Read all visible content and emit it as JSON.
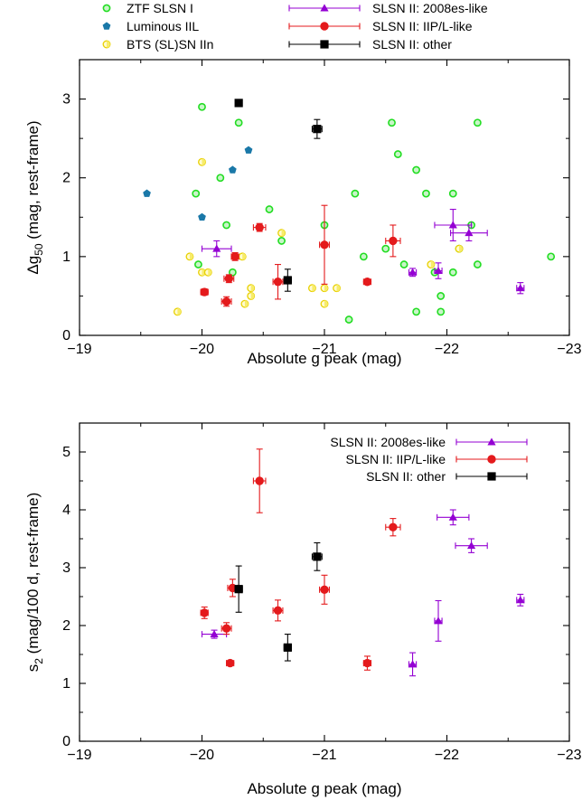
{
  "chart_data": [
    {
      "type": "scatter",
      "title": "",
      "xlabel": "Absolute g peak (mag)",
      "ylabel_parts": [
        "Δg",
        "50",
        " (mag, rest-frame)"
      ],
      "xlim": [
        -19,
        -23
      ],
      "ylim": [
        0,
        3.5
      ],
      "x_ticks": [
        -19,
        -20,
        -21,
        -22,
        -23
      ],
      "x_tick_labels": [
        "−19",
        "−20",
        "−21",
        "−22",
        "−23"
      ],
      "y_ticks": [
        0,
        1,
        2,
        3
      ],
      "y_tick_labels": [
        "0",
        "1",
        "2",
        "3"
      ],
      "grid": false,
      "legend_placement": "above-plot",
      "series": [
        {
          "name": "ZTF SLSN I",
          "marker": "circle-open",
          "color": "#22dd22",
          "fill": "#c8f5c8",
          "points": [
            {
              "x": -20.0,
              "y": 2.9
            },
            {
              "x": -20.3,
              "y": 2.7
            },
            {
              "x": -20.15,
              "y": 2.0
            },
            {
              "x": -19.95,
              "y": 1.8
            },
            {
              "x": -20.55,
              "y": 1.6
            },
            {
              "x": -20.2,
              "y": 1.4
            },
            {
              "x": -19.97,
              "y": 0.9
            },
            {
              "x": -20.25,
              "y": 0.8
            },
            {
              "x": -20.65,
              "y": 1.2
            },
            {
              "x": -21.0,
              "y": 1.4
            },
            {
              "x": -21.25,
              "y": 1.8
            },
            {
              "x": -21.55,
              "y": 2.7
            },
            {
              "x": -21.6,
              "y": 2.3
            },
            {
              "x": -21.75,
              "y": 2.1
            },
            {
              "x": -21.83,
              "y": 1.8
            },
            {
              "x": -21.5,
              "y": 1.1
            },
            {
              "x": -21.32,
              "y": 1.0
            },
            {
              "x": -21.65,
              "y": 0.9
            },
            {
              "x": -21.2,
              "y": 0.2
            },
            {
              "x": -21.75,
              "y": 0.3
            },
            {
              "x": -21.9,
              "y": 0.8
            },
            {
              "x": -21.95,
              "y": 0.5
            },
            {
              "x": -21.95,
              "y": 0.3
            },
            {
              "x": -22.05,
              "y": 1.8
            },
            {
              "x": -22.2,
              "y": 1.4
            },
            {
              "x": -22.1,
              "y": 1.1
            },
            {
              "x": -22.05,
              "y": 0.8
            },
            {
              "x": -22.25,
              "y": 0.9
            },
            {
              "x": -22.25,
              "y": 2.7
            },
            {
              "x": -22.85,
              "y": 1.0
            }
          ]
        },
        {
          "name": "Luminous IIL",
          "marker": "pentagon",
          "color": "#1a78a8",
          "fill": "#1a78a8",
          "points": [
            {
              "x": -19.55,
              "y": 1.8
            },
            {
              "x": -20.0,
              "y": 1.5
            },
            {
              "x": -20.25,
              "y": 2.1
            },
            {
              "x": -20.38,
              "y": 2.35
            }
          ]
        },
        {
          "name": "BTS (SL)SN IIn",
          "marker": "circle-half",
          "color": "#e8d000",
          "fill": "#f7ec6a",
          "points": [
            {
              "x": -19.8,
              "y": 0.3
            },
            {
              "x": -20.0,
              "y": 2.2
            },
            {
              "x": -19.9,
              "y": 1.0
            },
            {
              "x": -20.0,
              "y": 0.8
            },
            {
              "x": -20.05,
              "y": 0.8
            },
            {
              "x": -20.33,
              "y": 1.0
            },
            {
              "x": -20.4,
              "y": 0.6
            },
            {
              "x": -20.4,
              "y": 0.5
            },
            {
              "x": -20.35,
              "y": 0.4
            },
            {
              "x": -20.65,
              "y": 1.3
            },
            {
              "x": -20.9,
              "y": 0.6
            },
            {
              "x": -21.0,
              "y": 0.6
            },
            {
              "x": -21.1,
              "y": 0.6
            },
            {
              "x": -21.0,
              "y": 0.4
            },
            {
              "x": -21.87,
              "y": 0.9
            },
            {
              "x": -22.1,
              "y": 1.1
            }
          ]
        },
        {
          "name": "SLSN II: 2008es-like",
          "marker": "triangle",
          "color": "#9400d3",
          "points": [
            {
              "x": -20.12,
              "y": 1.1,
              "yerr": 0.1,
              "xerr": 0.12
            },
            {
              "x": -21.72,
              "y": 0.8,
              "yerr": 0.05,
              "xerr": 0.03
            },
            {
              "x": -21.93,
              "y": 0.82,
              "yerr": 0.1,
              "xerr": 0.03
            },
            {
              "x": -22.05,
              "y": 1.4,
              "yerr": 0.2,
              "xerr": 0.15
            },
            {
              "x": -22.18,
              "y": 1.3,
              "yerr": 0.1,
              "xerr": 0.15
            },
            {
              "x": -22.6,
              "y": 0.6,
              "yerr": 0.07,
              "xerr": 0.03
            }
          ]
        },
        {
          "name": "SLSN II: IIP/L-like",
          "marker": "circle",
          "color": "#e41a1c",
          "points": [
            {
              "x": -20.02,
              "y": 0.55,
              "yerr": 0.04,
              "xerr": 0.03
            },
            {
              "x": -20.2,
              "y": 0.43,
              "yerr": 0.06,
              "xerr": 0.04
            },
            {
              "x": -20.22,
              "y": 0.72,
              "yerr": 0.05,
              "xerr": 0.04
            },
            {
              "x": -20.27,
              "y": 1.0,
              "yerr": 0.05,
              "xerr": 0.03
            },
            {
              "x": -20.47,
              "y": 1.37,
              "yerr": 0.05,
              "xerr": 0.05
            },
            {
              "x": -20.62,
              "y": 0.68,
              "yerr": 0.22,
              "xerr": 0.04
            },
            {
              "x": -21.0,
              "y": 1.15,
              "yerr": 0.5,
              "xerr": 0.04
            },
            {
              "x": -21.35,
              "y": 0.68,
              "yerr": 0.03,
              "xerr": 0.03
            },
            {
              "x": -21.56,
              "y": 1.2,
              "yerr": 0.2,
              "xerr": 0.06
            }
          ]
        },
        {
          "name": "SLSN II: other",
          "marker": "square",
          "color": "#000000",
          "points": [
            {
              "x": -20.3,
              "y": 2.95,
              "yerr": 0.0,
              "xerr": 0.0
            },
            {
              "x": -20.7,
              "y": 0.7,
              "yerr": 0.14,
              "xerr": 0.03
            },
            {
              "x": -20.94,
              "y": 2.62,
              "yerr": 0.12,
              "xerr": 0.04
            }
          ]
        }
      ]
    },
    {
      "type": "scatter",
      "title": "",
      "xlabel": "Absolute g peak (mag)",
      "ylabel_parts": [
        "s",
        "2",
        " (mag/100 d, rest-frame)"
      ],
      "xlim": [
        -19,
        -23
      ],
      "ylim": [
        0,
        5.5
      ],
      "x_ticks": [
        -19,
        -20,
        -21,
        -22,
        -23
      ],
      "x_tick_labels": [
        "−19",
        "−20",
        "−21",
        "−22",
        "−23"
      ],
      "y_ticks": [
        0,
        1,
        2,
        3,
        4,
        5
      ],
      "y_tick_labels": [
        "0",
        "1",
        "2",
        "3",
        "4",
        "5"
      ],
      "grid": false,
      "legend_placement": "top-right",
      "series": [
        {
          "name": "SLSN II: 2008es-like",
          "marker": "triangle",
          "color": "#9400d3",
          "points": [
            {
              "x": -20.1,
              "y": 1.85,
              "yerr": 0.07,
              "xerr": 0.1
            },
            {
              "x": -21.72,
              "y": 1.33,
              "yerr": 0.2,
              "xerr": 0.03
            },
            {
              "x": -21.93,
              "y": 2.08,
              "yerr": 0.35,
              "xerr": 0.03
            },
            {
              "x": -22.05,
              "y": 3.87,
              "yerr": 0.13,
              "xerr": 0.13
            },
            {
              "x": -22.2,
              "y": 3.38,
              "yerr": 0.12,
              "xerr": 0.13
            },
            {
              "x": -22.6,
              "y": 2.44,
              "yerr": 0.1,
              "xerr": 0.03
            }
          ]
        },
        {
          "name": "SLSN II: IIP/L-like",
          "marker": "circle",
          "color": "#e41a1c",
          "points": [
            {
              "x": -20.02,
              "y": 2.22,
              "yerr": 0.1,
              "xerr": 0.03
            },
            {
              "x": -20.2,
              "y": 1.95,
              "yerr": 0.1,
              "xerr": 0.04
            },
            {
              "x": -20.23,
              "y": 1.35,
              "yerr": 0.03,
              "xerr": 0.03
            },
            {
              "x": -20.25,
              "y": 2.65,
              "yerr": 0.15,
              "xerr": 0.04
            },
            {
              "x": -20.47,
              "y": 4.5,
              "yerr": 0.55,
              "xerr": 0.05
            },
            {
              "x": -20.62,
              "y": 2.26,
              "yerr": 0.18,
              "xerr": 0.04
            },
            {
              "x": -21.0,
              "y": 2.62,
              "yerr": 0.25,
              "xerr": 0.04
            },
            {
              "x": -21.35,
              "y": 1.35,
              "yerr": 0.12,
              "xerr": 0.03
            },
            {
              "x": -21.56,
              "y": 3.7,
              "yerr": 0.15,
              "xerr": 0.06
            }
          ]
        },
        {
          "name": "SLSN II: other",
          "marker": "square",
          "color": "#000000",
          "points": [
            {
              "x": -20.3,
              "y": 2.63,
              "yerr": 0.4,
              "xerr": 0.03
            },
            {
              "x": -20.7,
              "y": 1.62,
              "yerr": 0.23,
              "xerr": 0.03
            },
            {
              "x": -20.94,
              "y": 3.19,
              "yerr": 0.24,
              "xerr": 0.04
            }
          ]
        }
      ]
    }
  ]
}
